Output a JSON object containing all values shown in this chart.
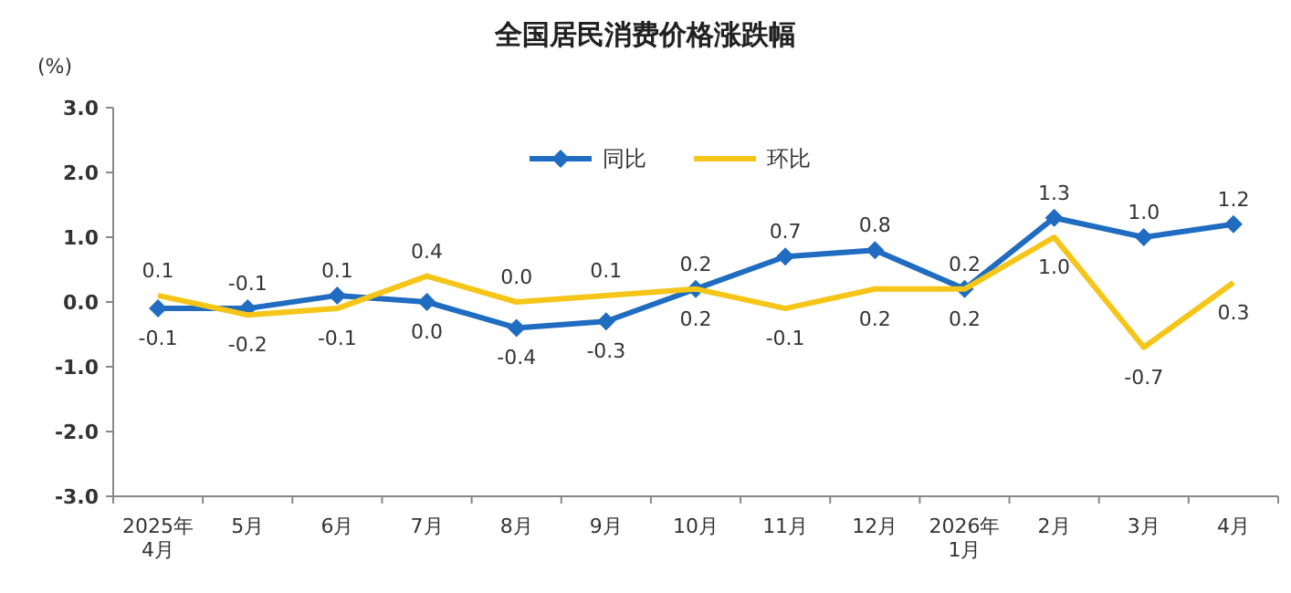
{
  "chart_data": {
    "type": "line",
    "title": "全国居民消费价格涨跌幅",
    "ylabel": "(%)",
    "categories": [
      "2025年\n4月",
      "5月",
      "6月",
      "7月",
      "8月",
      "9月",
      "10月",
      "11月",
      "12月",
      "2026年\n1月",
      "2月",
      "3月",
      "4月"
    ],
    "ylim": [
      -3,
      3
    ],
    "yticks": [
      {
        "value": -3,
        "label": "-3.0"
      },
      {
        "value": -2,
        "label": "-2.0"
      },
      {
        "value": -1,
        "label": "-1.0"
      },
      {
        "value": 0,
        "label": "0.0"
      },
      {
        "value": 1,
        "label": "1.0"
      },
      {
        "value": 2,
        "label": "2.0"
      },
      {
        "value": 3,
        "label": "3.0"
      }
    ],
    "legend": "top",
    "grid": false,
    "series": [
      {
        "name": "同比",
        "color": "#1f6cc0",
        "marker": "diamond",
        "values": [
          -0.1,
          -0.1,
          0.1,
          0.0,
          -0.4,
          -0.3,
          0.2,
          0.7,
          0.8,
          0.2,
          1.3,
          1.0,
          1.2
        ],
        "value_labels": [
          "-0.1",
          "-0.1",
          "0.1",
          "0.0",
          "-0.4",
          "-0.3",
          "0.2",
          "0.7",
          "0.8",
          "0.2",
          "1.3",
          "1.0",
          "1.2"
        ]
      },
      {
        "name": "环比",
        "color": "#f5c518",
        "marker": "none",
        "values": [
          0.1,
          -0.2,
          -0.1,
          0.4,
          0.0,
          0.1,
          0.2,
          -0.1,
          0.2,
          0.2,
          1.0,
          -0.7,
          0.3
        ],
        "value_labels": [
          "0.1",
          "-0.2",
          "-0.1",
          "0.4",
          "0.0",
          "0.1",
          "0.2",
          "-0.1",
          "0.2",
          "0.2",
          "1.0",
          "-0.7",
          "0.3"
        ]
      }
    ]
  }
}
